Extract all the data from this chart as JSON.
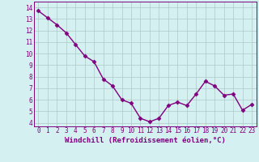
{
  "x": [
    0,
    1,
    2,
    3,
    4,
    5,
    6,
    7,
    8,
    9,
    10,
    11,
    12,
    13,
    14,
    15,
    16,
    17,
    18,
    19,
    20,
    21,
    22,
    23
  ],
  "y": [
    13.7,
    13.1,
    12.5,
    11.8,
    10.8,
    9.8,
    9.3,
    7.8,
    7.2,
    6.0,
    5.7,
    4.4,
    4.1,
    4.4,
    5.5,
    5.8,
    5.5,
    6.5,
    7.6,
    7.2,
    6.4,
    6.5,
    5.1,
    5.6
  ],
  "line_color": "#800080",
  "marker": "D",
  "markersize": 2.5,
  "linewidth": 1.0,
  "bg_color": "#d4f0f0",
  "grid_color": "#b0c8c8",
  "xlabel": "Windchill (Refroidissement éolien,°C)",
  "xlabel_fontsize": 6.5,
  "ytick_labels": [
    "4",
    "5",
    "6",
    "7",
    "8",
    "9",
    "10",
    "11",
    "12",
    "13",
    "14"
  ],
  "yticks": [
    4,
    5,
    6,
    7,
    8,
    9,
    10,
    11,
    12,
    13,
    14
  ],
  "xlim": [
    -0.5,
    23.5
  ],
  "ylim": [
    3.7,
    14.5
  ],
  "xtick_labels": [
    "0",
    "1",
    "2",
    "3",
    "4",
    "5",
    "6",
    "7",
    "8",
    "9",
    "10",
    "11",
    "12",
    "13",
    "14",
    "15",
    "16",
    "17",
    "18",
    "19",
    "20",
    "21",
    "22",
    "23"
  ],
  "tick_fontsize": 5.5,
  "axis_color": "#800080"
}
